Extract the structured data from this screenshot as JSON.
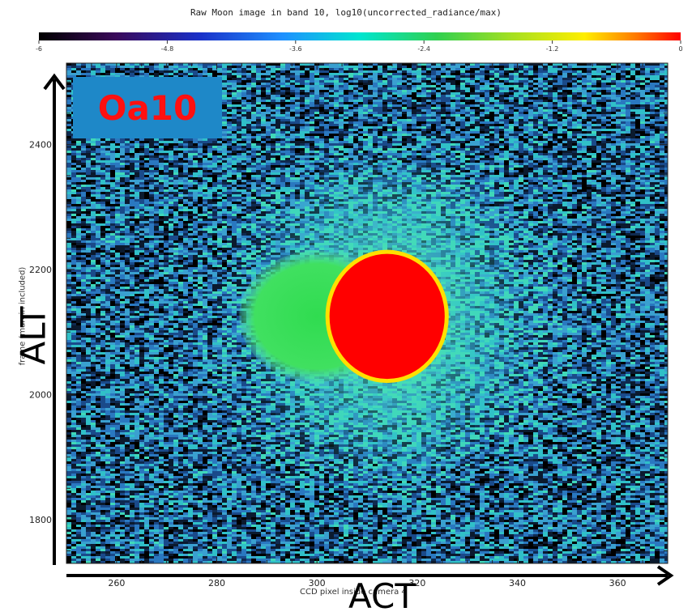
{
  "title": "Raw Moon image in band 10, log10(uncorrected_radiance/max)",
  "badge_text": "Oa10",
  "colorbar": {
    "ticks": [
      "-6",
      "-4.8",
      "-3.6",
      "-2.4",
      "-1.2",
      "0"
    ],
    "range": [
      -6,
      0
    ]
  },
  "chart_data": {
    "type": "heatmap",
    "title": "Raw Moon image in band 10, log10(uncorrected_radiance/max)",
    "xlabel": "CCD pixel inside camera 4",
    "ylabel": "frame (margin included)",
    "xlim": [
      250,
      370
    ],
    "ylim": [
      1730,
      2530
    ],
    "xticks": [
      260,
      280,
      300,
      320,
      340,
      360
    ],
    "yticks": [
      1800,
      2000,
      2200,
      2400
    ],
    "color_range": [
      -6,
      0
    ],
    "moon": {
      "center_x": 314,
      "center_y": 2125,
      "radius_y": 100,
      "value": 0
    },
    "ghost": {
      "center_x": 300,
      "center_y": 2125,
      "value": -2.4
    },
    "background_level": -3.6
  },
  "annotations": {
    "x_arrow_label": "ACT",
    "y_arrow_label": "ALT"
  },
  "colors": {
    "badge_bg": "#1e88c8",
    "badge_text": "#ff1010",
    "moon": "#ff0000"
  }
}
